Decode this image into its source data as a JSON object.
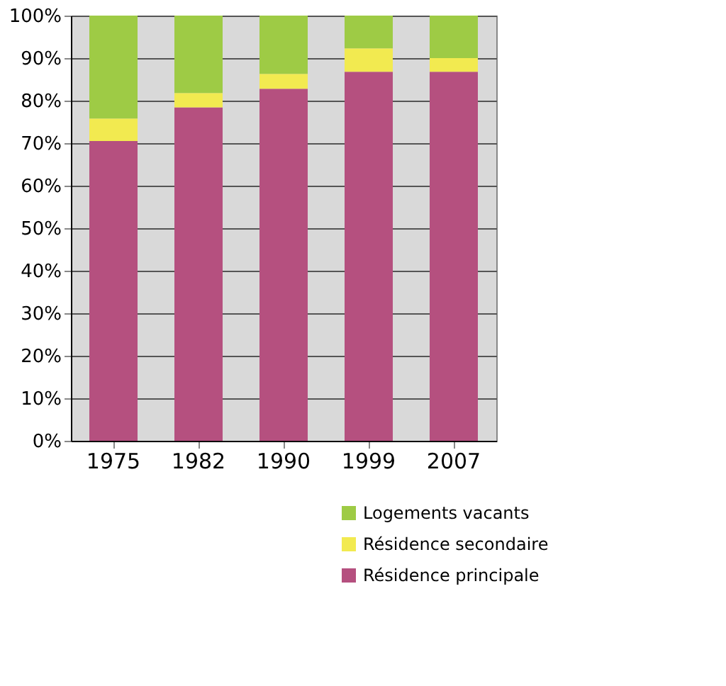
{
  "chart_data": {
    "type": "bar",
    "stacked": true,
    "categories": [
      "1975",
      "1982",
      "1990",
      "1999",
      "2007"
    ],
    "series": [
      {
        "name": "Résidence principale",
        "color": "#b5507f",
        "values": [
          70.5,
          78.4,
          82.8,
          86.8,
          86.8
        ]
      },
      {
        "name": "Résidence secondaire",
        "color": "#f2ea50",
        "values": [
          5.3,
          3.4,
          3.5,
          5.5,
          3.2
        ]
      },
      {
        "name": "Logements vacants",
        "color": "#9ecb45",
        "values": [
          24.2,
          18.2,
          13.7,
          7.7,
          10.0
        ]
      }
    ],
    "ylim": [
      0,
      100
    ],
    "yticks": [
      {
        "value": 0,
        "label": "0%"
      },
      {
        "value": 10,
        "label": "10%"
      },
      {
        "value": 20,
        "label": "20%"
      },
      {
        "value": 30,
        "label": "30%"
      },
      {
        "value": 40,
        "label": "40%"
      },
      {
        "value": 50,
        "label": "50%"
      },
      {
        "value": 60,
        "label": "60%"
      },
      {
        "value": 70,
        "label": "70%"
      },
      {
        "value": 80,
        "label": "80%"
      },
      {
        "value": 90,
        "label": "90%"
      },
      {
        "value": 100,
        "label": "100%"
      }
    ],
    "grid": "y",
    "legend": "bottom right"
  }
}
